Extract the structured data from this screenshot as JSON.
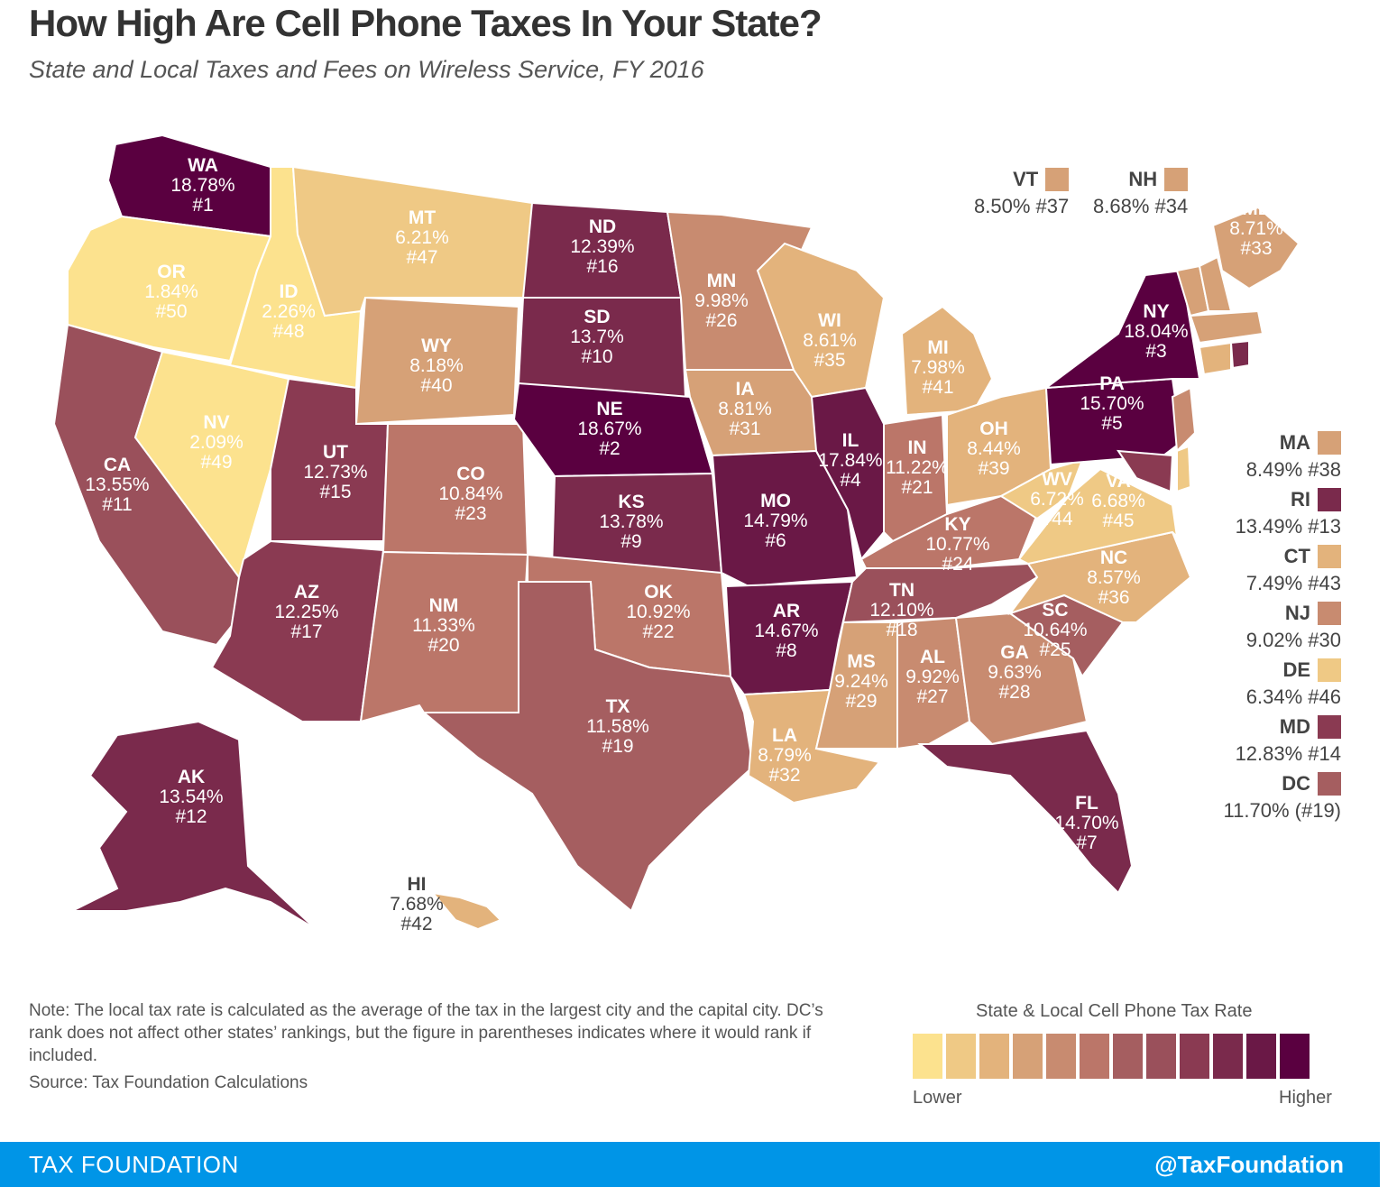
{
  "title": "How High Are Cell Phone Taxes In Your State?",
  "subtitle": "State and Local Taxes and Fees on Wireless Service, FY 2016",
  "scale_colors": [
    "#fce28e",
    "#efc985",
    "#e3b37c",
    "#d6a177",
    "#c88b70",
    "#bb7669",
    "#a55e60",
    "#9a505b",
    "#8a3a52",
    "#7a2a4c",
    "#6a1846",
    "#5a0040"
  ],
  "states": [
    {
      "abbr": "WA",
      "rate": "18.78%",
      "rank": "#1"
    },
    {
      "abbr": "OR",
      "rate": "1.84%",
      "rank": "#50"
    },
    {
      "abbr": "CA",
      "rate": "13.55%",
      "rank": "#11"
    },
    {
      "abbr": "ID",
      "rate": "2.26%",
      "rank": "#48"
    },
    {
      "abbr": "NV",
      "rate": "2.09%",
      "rank": "#49"
    },
    {
      "abbr": "MT",
      "rate": "6.21%",
      "rank": "#47"
    },
    {
      "abbr": "WY",
      "rate": "8.18%",
      "rank": "#40"
    },
    {
      "abbr": "UT",
      "rate": "12.73%",
      "rank": "#15"
    },
    {
      "abbr": "AZ",
      "rate": "12.25%",
      "rank": "#17"
    },
    {
      "abbr": "CO",
      "rate": "10.84%",
      "rank": "#23"
    },
    {
      "abbr": "NM",
      "rate": "11.33%",
      "rank": "#20"
    },
    {
      "abbr": "ND",
      "rate": "12.39%",
      "rank": "#16"
    },
    {
      "abbr": "SD",
      "rate": "13.7%",
      "rank": "#10"
    },
    {
      "abbr": "NE",
      "rate": "18.67%",
      "rank": "#2"
    },
    {
      "abbr": "KS",
      "rate": "13.78%",
      "rank": "#9"
    },
    {
      "abbr": "OK",
      "rate": "10.92%",
      "rank": "#22"
    },
    {
      "abbr": "TX",
      "rate": "11.58%",
      "rank": "#19"
    },
    {
      "abbr": "MN",
      "rate": "9.98%",
      "rank": "#26"
    },
    {
      "abbr": "IA",
      "rate": "8.81%",
      "rank": "#31"
    },
    {
      "abbr": "MO",
      "rate": "14.79%",
      "rank": "#6"
    },
    {
      "abbr": "AR",
      "rate": "14.67%",
      "rank": "#8"
    },
    {
      "abbr": "LA",
      "rate": "8.79%",
      "rank": "#32"
    },
    {
      "abbr": "WI",
      "rate": "8.61%",
      "rank": "#35"
    },
    {
      "abbr": "IL",
      "rate": "17.84%",
      "rank": "#4"
    },
    {
      "abbr": "MI",
      "rate": "7.98%",
      "rank": "#41"
    },
    {
      "abbr": "IN",
      "rate": "11.22%",
      "rank": "#21"
    },
    {
      "abbr": "OH",
      "rate": "8.44%",
      "rank": "#39"
    },
    {
      "abbr": "KY",
      "rate": "10.77%",
      "rank": "#24"
    },
    {
      "abbr": "TN",
      "rate": "12.10%",
      "rank": "#18"
    },
    {
      "abbr": "MS",
      "rate": "9.24%",
      "rank": "#29"
    },
    {
      "abbr": "AL",
      "rate": "9.92%",
      "rank": "#27"
    },
    {
      "abbr": "GA",
      "rate": "9.63%",
      "rank": "#28"
    },
    {
      "abbr": "FL",
      "rate": "14.70%",
      "rank": "#7"
    },
    {
      "abbr": "SC",
      "rate": "10.64%",
      "rank": "#25"
    },
    {
      "abbr": "NC",
      "rate": "8.57%",
      "rank": "#36"
    },
    {
      "abbr": "VA",
      "rate": "6.68%",
      "rank": "#45"
    },
    {
      "abbr": "WV",
      "rate": "6.72%",
      "rank": "#44"
    },
    {
      "abbr": "PA",
      "rate": "15.70%",
      "rank": "#5"
    },
    {
      "abbr": "NY",
      "rate": "18.04%",
      "rank": "#3"
    },
    {
      "abbr": "ME",
      "rate": "8.71%",
      "rank": "#33"
    },
    {
      "abbr": "AK",
      "rate": "13.54%",
      "rank": "#12"
    },
    {
      "abbr": "HI",
      "rate": "7.68%",
      "rank": "#42"
    }
  ],
  "top_small": [
    {
      "abbr": "VT",
      "value": "8.50% #37",
      "color": "#d6a177"
    },
    {
      "abbr": "NH",
      "value": "8.68% #34",
      "color": "#d6a177"
    }
  ],
  "side_small": [
    {
      "abbr": "MA",
      "value": "8.49% #38",
      "color": "#d6a177"
    },
    {
      "abbr": "RI",
      "value": "13.49% #13",
      "color": "#7a2a4c"
    },
    {
      "abbr": "CT",
      "value": "7.49% #43",
      "color": "#e3b37c"
    },
    {
      "abbr": "NJ",
      "value": "9.02% #30",
      "color": "#c88b70"
    },
    {
      "abbr": "DE",
      "value": "6.34% #46",
      "color": "#efc985"
    },
    {
      "abbr": "MD",
      "value": "12.83% #14",
      "color": "#8a3a52"
    },
    {
      "abbr": "DC",
      "value": "11.70% (#19)",
      "color": "#a55e60"
    }
  ],
  "note": "Note: The local tax rate is calculated as the average of the tax in the largest city and the capital city. DC’s rank does not affect other states’ rankings, but the figure in parentheses indicates where it would rank if included.",
  "source": "Source: Tax Foundation Calculations",
  "legend": {
    "title": "State & Local Cell Phone Tax Rate",
    "low": "Lower",
    "high": "Higher"
  },
  "footer": {
    "left": "TAX FOUNDATION",
    "right": "@TaxFoundation"
  }
}
